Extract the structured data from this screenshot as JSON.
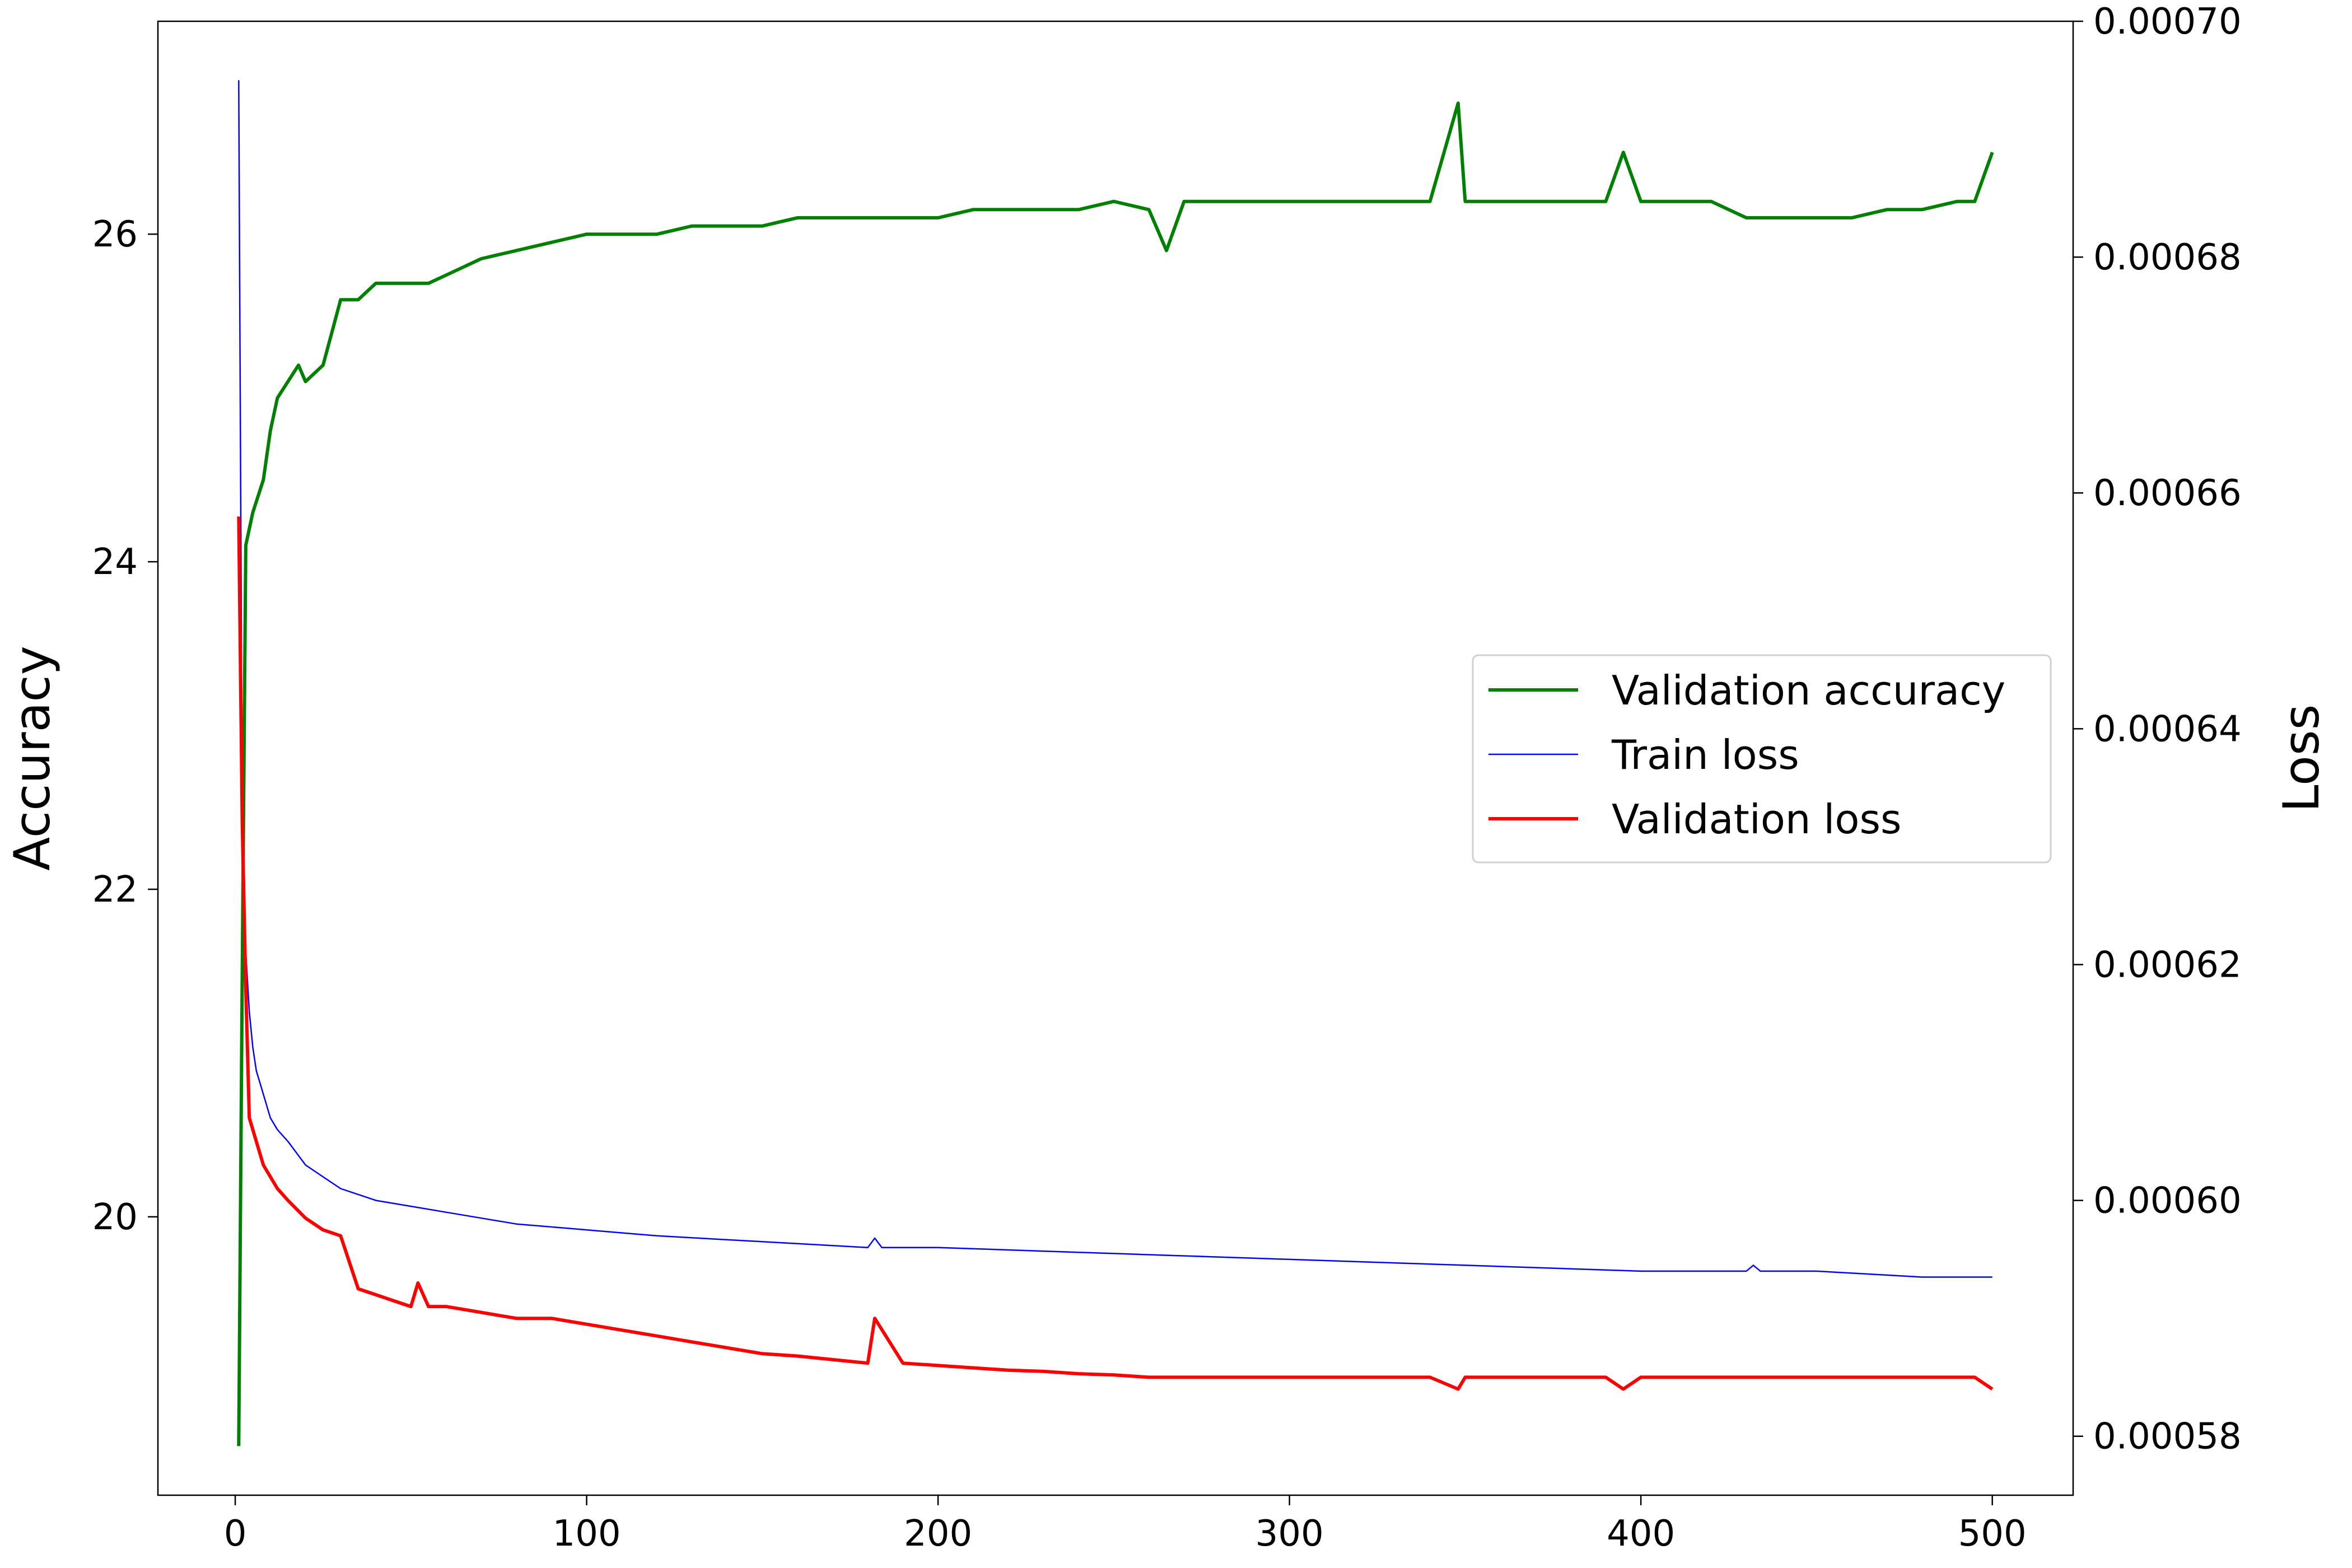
{
  "chart_data": {
    "type": "line",
    "xlabel": "",
    "ylabel": "Accuracy",
    "y2label": "Loss",
    "xlim": [
      -22,
      523
    ],
    "ylim": [
      18.3,
      27.3
    ],
    "y2lim": [
      0.000575,
      0.0007
    ],
    "xticks": [
      0,
      100,
      200,
      300,
      400,
      500
    ],
    "yticks": [
      20,
      22,
      24,
      26
    ],
    "y2ticks": [
      0.00058,
      0.0006,
      0.00062,
      0.00064,
      0.00066,
      0.00068,
      0.0007
    ],
    "y2tick_labels": [
      "0.00058",
      "0.00060",
      "0.00062",
      "0.00064",
      "0.00066",
      "0.00068",
      "0.00070"
    ],
    "grid": false,
    "legend": {
      "position": "center-right",
      "entries": [
        "Validation accuracy",
        "Train loss",
        "Validation loss"
      ]
    },
    "series": [
      {
        "name": "Validation accuracy",
        "axis": "left",
        "color": "#008000",
        "x": [
          1,
          2,
          3,
          5,
          8,
          10,
          12,
          15,
          18,
          20,
          25,
          30,
          35,
          40,
          45,
          50,
          55,
          60,
          65,
          70,
          80,
          90,
          100,
          110,
          120,
          130,
          140,
          150,
          160,
          170,
          180,
          190,
          200,
          210,
          220,
          230,
          240,
          250,
          260,
          265,
          270,
          280,
          290,
          300,
          310,
          320,
          330,
          340,
          348,
          350,
          360,
          370,
          380,
          390,
          395,
          400,
          410,
          420,
          430,
          440,
          450,
          460,
          470,
          480,
          490,
          495,
          500
        ],
        "y": [
          18.6,
          21.5,
          24.1,
          24.3,
          24.5,
          24.8,
          25.0,
          25.1,
          25.2,
          25.1,
          25.2,
          25.6,
          25.6,
          25.7,
          25.7,
          25.7,
          25.7,
          25.75,
          25.8,
          25.85,
          25.9,
          25.95,
          26.0,
          26.0,
          26.0,
          26.05,
          26.05,
          26.05,
          26.1,
          26.1,
          26.1,
          26.1,
          26.1,
          26.15,
          26.15,
          26.15,
          26.15,
          26.2,
          26.15,
          25.9,
          26.2,
          26.2,
          26.2,
          26.2,
          26.2,
          26.2,
          26.2,
          26.2,
          26.8,
          26.2,
          26.2,
          26.2,
          26.2,
          26.2,
          26.5,
          26.2,
          26.2,
          26.2,
          26.1,
          26.1,
          26.1,
          26.1,
          26.15,
          26.15,
          26.2,
          26.2,
          26.5
        ]
      },
      {
        "name": "Train loss",
        "axis": "right",
        "color": "#0000ff",
        "x": [
          1,
          2,
          3,
          4,
          5,
          6,
          8,
          10,
          12,
          15,
          20,
          25,
          30,
          40,
          50,
          60,
          70,
          80,
          100,
          120,
          150,
          180,
          182,
          184,
          200,
          250,
          300,
          350,
          400,
          430,
          432,
          434,
          450,
          480,
          500
        ],
        "y": [
          0.000695,
          0.000632,
          0.000621,
          0.000616,
          0.000613,
          0.000611,
          0.000609,
          0.000607,
          0.000606,
          0.000605,
          0.000603,
          0.000602,
          0.000601,
          0.0006,
          0.0005995,
          0.000599,
          0.0005985,
          0.000598,
          0.0005975,
          0.000597,
          0.0005965,
          0.000596,
          0.0005968,
          0.000596,
          0.000596,
          0.0005955,
          0.000595,
          0.0005945,
          0.000594,
          0.000594,
          0.0005945,
          0.000594,
          0.000594,
          0.0005935,
          0.0005935
        ]
      },
      {
        "name": "Validation loss",
        "axis": "right",
        "color": "#ff0000",
        "x": [
          1,
          2,
          3,
          4,
          6,
          8,
          10,
          12,
          15,
          20,
          25,
          30,
          35,
          40,
          45,
          50,
          52,
          55,
          60,
          70,
          80,
          90,
          100,
          110,
          120,
          130,
          140,
          150,
          160,
          170,
          180,
          182,
          190,
          200,
          210,
          220,
          230,
          240,
          250,
          260,
          270,
          280,
          290,
          300,
          310,
          320,
          330,
          340,
          348,
          350,
          360,
          370,
          380,
          390,
          395,
          400,
          410,
          420,
          430,
          440,
          450,
          460,
          470,
          480,
          490,
          495,
          500
        ],
        "y": [
          0.000658,
          0.000632,
          0.000618,
          0.000607,
          0.000605,
          0.000603,
          0.000602,
          0.000601,
          0.0006,
          0.0005985,
          0.0005975,
          0.000597,
          0.0005925,
          0.000592,
          0.0005915,
          0.000591,
          0.000593,
          0.000591,
          0.000591,
          0.0005905,
          0.00059,
          0.00059,
          0.0005895,
          0.000589,
          0.0005885,
          0.000588,
          0.0005875,
          0.000587,
          0.0005868,
          0.0005865,
          0.0005862,
          0.00059,
          0.0005862,
          0.000586,
          0.0005858,
          0.0005856,
          0.0005855,
          0.0005853,
          0.0005852,
          0.000585,
          0.000585,
          0.000585,
          0.000585,
          0.000585,
          0.000585,
          0.000585,
          0.000585,
          0.000585,
          0.000584,
          0.000585,
          0.000585,
          0.000585,
          0.000585,
          0.000585,
          0.000584,
          0.000585,
          0.000585,
          0.000585,
          0.000585,
          0.000585,
          0.000585,
          0.000585,
          0.000585,
          0.000585,
          0.000585,
          0.000585,
          0.000584
        ]
      }
    ]
  }
}
